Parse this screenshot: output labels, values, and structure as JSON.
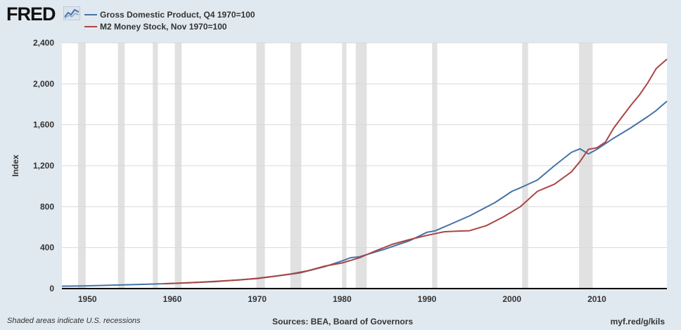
{
  "header": {
    "logo_text": "FRED"
  },
  "footer": {
    "note": "Shaded areas indicate U.S. recessions",
    "sources": "Sources: BEA, Board of Governors",
    "link": "myf.red/g/kils"
  },
  "chart_data": {
    "type": "line",
    "title": "",
    "xlabel": "",
    "ylabel": "Index",
    "xlim": [
      1947,
      2018.25
    ],
    "ylim": [
      0,
      2400
    ],
    "xticks": [
      1950,
      1960,
      1970,
      1980,
      1990,
      2000,
      2010
    ],
    "yticks": [
      0,
      400,
      800,
      1200,
      1600,
      2000,
      2400
    ],
    "ytick_labels": [
      "0",
      "400",
      "800",
      "1,200",
      "1,600",
      "2,000",
      "2,400"
    ],
    "grid": true,
    "legend_position": "top-left",
    "recessions": [
      [
        1948.9,
        1949.8
      ],
      [
        1953.6,
        1954.4
      ],
      [
        1957.7,
        1958.3
      ],
      [
        1960.3,
        1961.1
      ],
      [
        1969.9,
        1970.9
      ],
      [
        1973.9,
        1975.2
      ],
      [
        1980.0,
        1980.5
      ],
      [
        1981.6,
        1982.9
      ],
      [
        1990.6,
        1991.2
      ],
      [
        2001.2,
        2001.9
      ],
      [
        2007.9,
        2009.5
      ]
    ],
    "series": [
      {
        "name": "Gross Domestic Product, Q4 1970=100",
        "color": "#4572a7",
        "points": [
          [
            1947,
            23
          ],
          [
            1950,
            27
          ],
          [
            1955,
            38
          ],
          [
            1960,
            50
          ],
          [
            1965,
            68
          ],
          [
            1970,
            98
          ],
          [
            1973,
            130
          ],
          [
            1975,
            152
          ],
          [
            1978,
            215
          ],
          [
            1980,
            270
          ],
          [
            1981,
            302
          ],
          [
            1982,
            310
          ],
          [
            1985,
            385
          ],
          [
            1988,
            470
          ],
          [
            1990,
            550
          ],
          [
            1991,
            565
          ],
          [
            1995,
            710
          ],
          [
            1998,
            840
          ],
          [
            2000,
            950
          ],
          [
            2001,
            985
          ],
          [
            2003,
            1060
          ],
          [
            2005,
            1200
          ],
          [
            2007,
            1330
          ],
          [
            2008,
            1365
          ],
          [
            2009,
            1315
          ],
          [
            2010,
            1360
          ],
          [
            2012,
            1470
          ],
          [
            2014,
            1570
          ],
          [
            2016,
            1680
          ],
          [
            2017,
            1740
          ],
          [
            2018.25,
            1830
          ]
        ]
      },
      {
        "name": "M2 Money Stock, Nov 1970=100",
        "color": "#aa4643",
        "points": [
          [
            1959,
            48
          ],
          [
            1962,
            56
          ],
          [
            1965,
            70
          ],
          [
            1968,
            85
          ],
          [
            1970,
            100
          ],
          [
            1972,
            120
          ],
          [
            1974,
            143
          ],
          [
            1976,
            175
          ],
          [
            1978,
            220
          ],
          [
            1980,
            250
          ],
          [
            1982,
            300
          ],
          [
            1984,
            370
          ],
          [
            1986,
            435
          ],
          [
            1988,
            480
          ],
          [
            1990,
            520
          ],
          [
            1992,
            555
          ],
          [
            1994,
            562
          ],
          [
            1995,
            565
          ],
          [
            1997,
            615
          ],
          [
            1999,
            700
          ],
          [
            2001,
            800
          ],
          [
            2003,
            950
          ],
          [
            2005,
            1020
          ],
          [
            2007,
            1140
          ],
          [
            2008,
            1240
          ],
          [
            2009,
            1360
          ],
          [
            2010,
            1375
          ],
          [
            2011,
            1430
          ],
          [
            2012,
            1570
          ],
          [
            2013,
            1680
          ],
          [
            2014,
            1790
          ],
          [
            2015,
            1890
          ],
          [
            2016,
            2010
          ],
          [
            2017,
            2150
          ],
          [
            2018.25,
            2240
          ]
        ]
      }
    ]
  }
}
